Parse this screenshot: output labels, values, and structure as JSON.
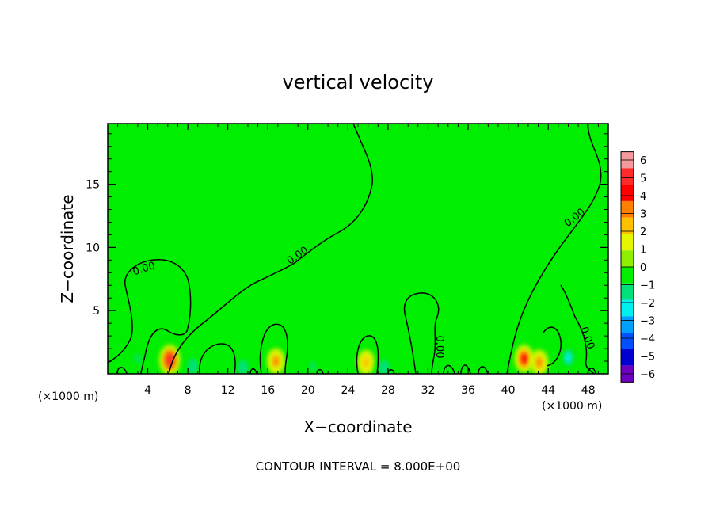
{
  "chart_data": {
    "type": "heatmap",
    "title": "vertical velocity",
    "xlabel": "X−coordinate",
    "ylabel": "Z−coordinate",
    "x_unit_left": "(×1000 m)",
    "x_unit_right": "(×1000 m)",
    "footnote": "CONTOUR INTERVAL = 8.000E+00",
    "xlim": [
      0,
      50
    ],
    "ylim": [
      0,
      19.8
    ],
    "x_ticks": [
      4,
      8,
      12,
      16,
      20,
      24,
      28,
      32,
      36,
      40,
      44,
      48
    ],
    "y_ticks": [
      5,
      10,
      15
    ],
    "colorbar": {
      "levels": [
        6,
        5,
        4,
        3,
        2,
        1,
        0,
        -1,
        -2,
        -3,
        -4,
        -5,
        -6
      ],
      "level_labels": [
        "6",
        "5",
        "4",
        "3",
        "2",
        "1",
        "0",
        "−1",
        "−2",
        "−3",
        "−4",
        "−5",
        "−6"
      ],
      "colors": [
        "#f59a9a",
        "#ff2a2a",
        "#ff0000",
        "#ff7f00",
        "#ffc000",
        "#e6f500",
        "#8ef000",
        "#00ee00",
        "#00e07a",
        "#00f0f0",
        "#00a0ff",
        "#0050ff",
        "#0000d0",
        "#7000c0"
      ]
    },
    "background_value": 0,
    "features": [
      {
        "x": 6.2,
        "z": 1.1,
        "value": 5.5
      },
      {
        "x": 16.8,
        "z": 1.0,
        "value": 3.0
      },
      {
        "x": 25.8,
        "z": 0.9,
        "value": 2.5
      },
      {
        "x": 41.6,
        "z": 1.2,
        "value": 4.0
      },
      {
        "x": 43.1,
        "z": 0.9,
        "value": 3.0
      },
      {
        "x": 46.0,
        "z": 1.3,
        "value": -2.5
      },
      {
        "x": 8.5,
        "z": 0.6,
        "value": -2.0
      },
      {
        "x": 3.0,
        "z": 1.2,
        "value": -1.5
      },
      {
        "x": 13.5,
        "z": 0.5,
        "value": -2.0
      },
      {
        "x": 20.5,
        "z": 0.6,
        "value": -1.5
      },
      {
        "x": 27.6,
        "z": 0.5,
        "value": -2.0
      },
      {
        "x": 4.5,
        "z": 6.0,
        "value": -0.8
      },
      {
        "x": 44.5,
        "z": 4.5,
        "value": -0.8
      }
    ],
    "contours": [
      {
        "label": "0.00"
      },
      {
        "label": "0.00"
      },
      {
        "label": "0.00"
      },
      {
        "label": "0.00"
      },
      {
        "label": "0.00"
      }
    ]
  }
}
